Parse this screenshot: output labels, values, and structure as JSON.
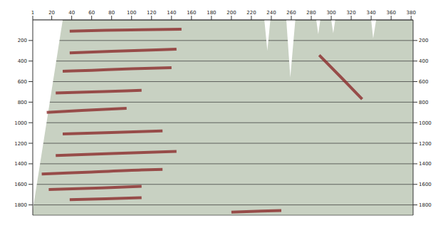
{
  "chart_data": {
    "type": "seismic",
    "xlim": [
      1,
      382
    ],
    "xticks": [
      1,
      20,
      40,
      60,
      80,
      100,
      120,
      140,
      160,
      180,
      200,
      220,
      240,
      260,
      280,
      300,
      320,
      340,
      360,
      380
    ],
    "ylim": [
      0,
      1900
    ],
    "yticks": [
      200,
      400,
      600,
      800,
      1000,
      1200,
      1400,
      1600,
      1800
    ],
    "grid": true,
    "series": [
      {
        "type": "area",
        "color": "#ffffff",
        "x": [
          1,
          31
        ],
        "values": [
          1850,
          0
        ]
      },
      {
        "type": "area",
        "color": "#ffffff",
        "x": [
          233,
          236,
          239
        ],
        "values": [
          0,
          300,
          0
        ]
      },
      {
        "type": "area",
        "color": "#ffffff",
        "x": [
          255,
          259,
          264
        ],
        "values": [
          0,
          560,
          0
        ]
      },
      {
        "type": "area",
        "color": "#ffffff",
        "x": [
          285,
          287,
          289
        ],
        "values": [
          0,
          140,
          0
        ]
      },
      {
        "type": "area",
        "color": "#ffffff",
        "x": [
          300,
          302,
          304
        ],
        "values": [
          0,
          130,
          0
        ]
      },
      {
        "type": "area",
        "color": "#ffffff",
        "x": [
          340,
          342,
          345
        ],
        "values": [
          0,
          180,
          0
        ]
      },
      {
        "type": "line",
        "color": "#8b2a2a",
        "x": [
          38,
          74,
          110,
          150
        ],
        "values": [
          110,
          100,
          95,
          90
        ]
      },
      {
        "type": "line",
        "color": "#8b2a2a",
        "x": [
          38,
          80,
          130,
          145
        ],
        "values": [
          320,
          305,
          290,
          285
        ]
      },
      {
        "type": "line",
        "color": "#8b2a2a",
        "x": [
          31,
          60,
          100,
          140
        ],
        "values": [
          500,
          490,
          475,
          465
        ]
      },
      {
        "type": "line",
        "color": "#8b2a2a",
        "x": [
          24,
          60,
          95,
          110
        ],
        "values": [
          710,
          700,
          690,
          685
        ]
      },
      {
        "type": "line",
        "color": "#8b2a2a",
        "x": [
          15,
          50,
          95
        ],
        "values": [
          900,
          880,
          860
        ]
      },
      {
        "type": "line",
        "color": "#8b2a2a",
        "x": [
          31,
          80,
          131
        ],
        "values": [
          1110,
          1095,
          1080
        ]
      },
      {
        "type": "line",
        "color": "#8b2a2a",
        "x": [
          24,
          80,
          145
        ],
        "values": [
          1320,
          1300,
          1280
        ]
      },
      {
        "type": "line",
        "color": "#8b2a2a",
        "x": [
          10,
          60,
          110,
          131
        ],
        "values": [
          1500,
          1480,
          1460,
          1455
        ]
      },
      {
        "type": "line",
        "color": "#8b2a2a",
        "x": [
          17,
          70,
          110
        ],
        "values": [
          1650,
          1635,
          1620
        ]
      },
      {
        "type": "line",
        "color": "#8b2a2a",
        "x": [
          38,
          74,
          110
        ],
        "values": [
          1750,
          1740,
          1730
        ]
      },
      {
        "type": "line",
        "color": "#8b2a2a",
        "x": [
          288,
          310,
          331
        ],
        "values": [
          343,
          560,
          771
        ]
      },
      {
        "type": "line",
        "color": "#8b2a2a",
        "x": [
          200,
          230,
          250
        ],
        "values": [
          1870,
          1860,
          1855
        ]
      }
    ]
  }
}
